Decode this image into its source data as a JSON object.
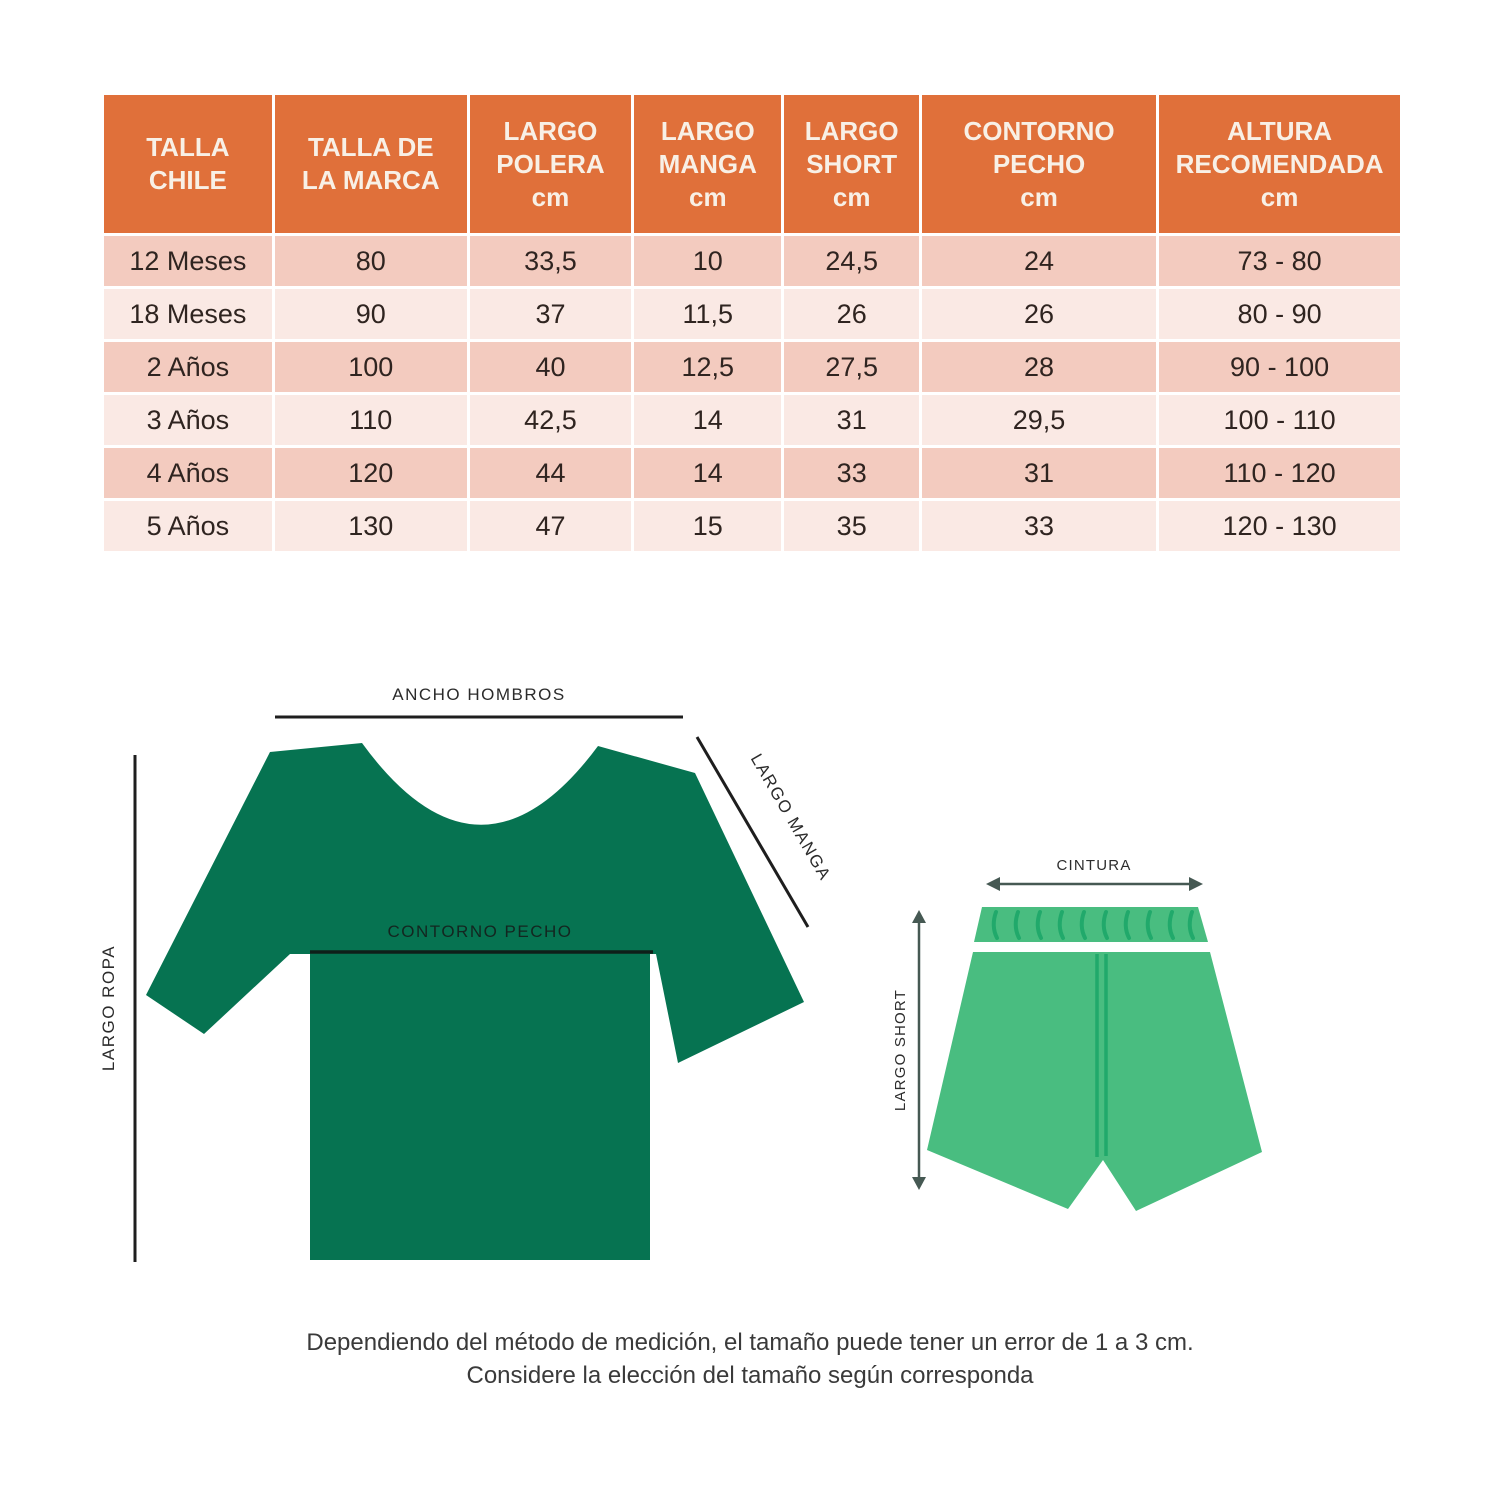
{
  "table": {
    "columns": [
      {
        "lines": [
          "TALLA",
          "CHILE"
        ],
        "unit": ""
      },
      {
        "lines": [
          "TALLA DE",
          "LA MARCA"
        ],
        "unit": ""
      },
      {
        "lines": [
          "LARGO",
          "POLERA"
        ],
        "unit": "cm"
      },
      {
        "lines": [
          "LARGO",
          "MANGA"
        ],
        "unit": "cm"
      },
      {
        "lines": [
          "LARGO",
          "SHORT"
        ],
        "unit": "cm"
      },
      {
        "lines": [
          "CONTORNO",
          "PECHO"
        ],
        "unit": "cm"
      },
      {
        "lines": [
          "ALTURA",
          "RECOMENDADA"
        ],
        "unit": "cm"
      }
    ],
    "rows": [
      [
        "12 Meses",
        "80",
        "33,5",
        "10",
        "24,5",
        "24",
        "73 - 80"
      ],
      [
        "18 Meses",
        "90",
        "37",
        "11,5",
        "26",
        "26",
        "80 - 90"
      ],
      [
        "2 Años",
        "100",
        "40",
        "12,5",
        "27,5",
        "28",
        "90 - 100"
      ],
      [
        "3 Años",
        "110",
        "42,5",
        "14",
        "31",
        "29,5",
        "100 - 110"
      ],
      [
        "4 Años",
        "120",
        "44",
        "14",
        "33",
        "31",
        "110 - 120"
      ],
      [
        "5 Años",
        "130",
        "47",
        "15",
        "35",
        "33",
        "120 - 130"
      ]
    ]
  },
  "diagram": {
    "shirt": {
      "label_shoulder": "ANCHO HOMBROS",
      "label_chest": "CONTORNO PECHO",
      "label_length": "LARGO ROPA",
      "label_sleeve": "LARGO MANGA",
      "color": "#067351"
    },
    "shorts": {
      "label_waist": "CINTURA",
      "label_length": "LARGO SHORT",
      "color": "#49BD80",
      "accent_color": "#21A96B"
    }
  },
  "colors": {
    "header_bg": "#E0703A",
    "header_text": "#F8F0E6",
    "row_dark": "#F3CBBF",
    "row_light": "#FAE9E4",
    "cell_text": "#2F2420",
    "shirt_green": "#067351",
    "shorts_green": "#49BD80",
    "shorts_accent": "#21A96B",
    "arrow_color": "#465953",
    "line_color": "#1e1e1e"
  },
  "footnote": {
    "line1": "Dependiendo del método de medición, el tamaño puede tener un error de 1 a 3 cm.",
    "line2": "Considere la elección del tamaño según corresponda"
  }
}
